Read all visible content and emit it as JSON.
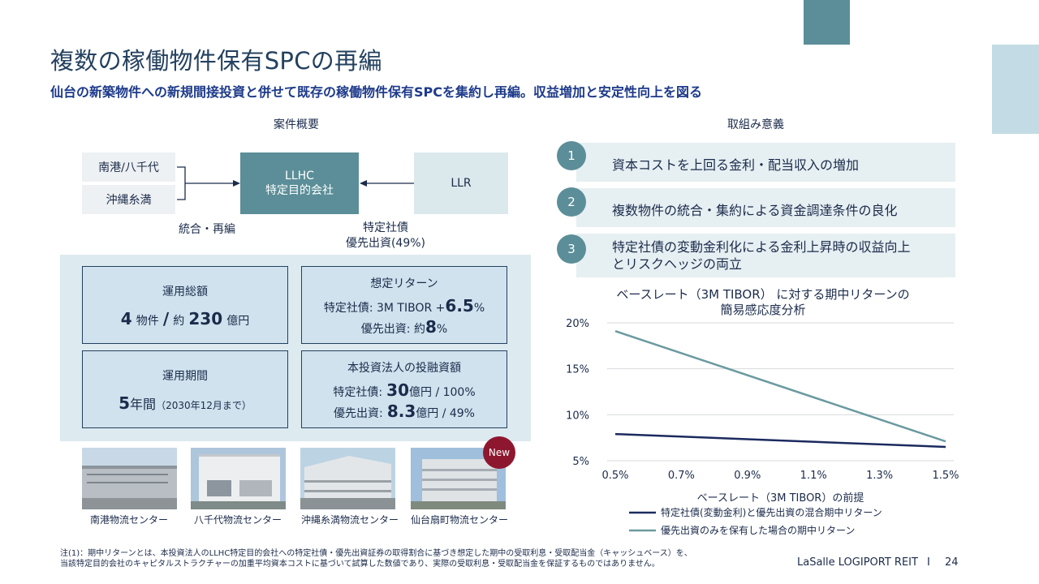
{
  "header": {
    "title": "複数の稼働物件保有SPCの再編",
    "subtitle": "仙台の新築物件への新規間接投資と併せて既存の稼働物件保有SPCを集約し再編。収益増加と安定性向上を図る"
  },
  "overview": {
    "heading": "案件概要",
    "source_boxes": [
      "南港/八千代",
      "沖縄糸満"
    ],
    "center_box": [
      "LLHC",
      "特定目的会社"
    ],
    "right_box": "LLR",
    "label_left": "統合・再編",
    "label_right": [
      "特定社債",
      "優先出資(49%)"
    ]
  },
  "cards": {
    "total": {
      "heading": "運用総額",
      "num1": "4",
      "unit1": "物件",
      "slash": "/",
      "prefix": "約",
      "num2": "230",
      "unit2": "億円"
    },
    "return": {
      "heading": "想定リターン",
      "line1_label": "特定社債: 3M TIBOR +",
      "line1_num": "6.5",
      "line1_unit": "%",
      "line2_label": "優先出資: 約",
      "line2_num": "8",
      "line2_unit": "%"
    },
    "period": {
      "heading": "運用期間",
      "num": "5",
      "unit": "年間",
      "note": "（2030年12月まで）"
    },
    "investment": {
      "heading": "本投資法人の投融資額",
      "line1_label": "特定社債:",
      "line1_num": "30",
      "line1_unit": "億円 / 100%",
      "line2_label": "優先出資:",
      "line2_num": "8.3",
      "line2_unit": "億円 / 49%"
    }
  },
  "photos": [
    {
      "caption": "南港物流センター"
    },
    {
      "caption": "八千代物流センター"
    },
    {
      "caption": "沖縄糸満物流センター"
    },
    {
      "caption": "仙台扇町物流センター"
    }
  ],
  "new_badge": "New",
  "significance": {
    "heading": "取組み意義",
    "items": [
      {
        "num": "1",
        "text": "資本コストを上回る金利・配当収入の増加"
      },
      {
        "num": "2",
        "text": "複数物件の統合・集約による資金調達条件の良化"
      },
      {
        "num": "3",
        "text_line1": "特定社債の変動金利化による金利上昇時の収益向上",
        "text_line2": "とリスクヘッジの両立"
      }
    ]
  },
  "chart_title": [
    "ベースレート（3M TIBOR） に対する期中リターンの",
    "簡易感応度分析"
  ],
  "chart_data": {
    "type": "line",
    "title": "ベースレート（3M TIBOR） に対する期中リターンの 簡易感応度分析",
    "xlabel": "ベースレート（3M TIBOR）の前提",
    "ylabel": "",
    "x_tick_labels": [
      "0.5%",
      "0.7%",
      "0.9%",
      "1.1%",
      "1.3%",
      "1.5%"
    ],
    "y_tick_labels": [
      "5%",
      "10%",
      "15%",
      "20%"
    ],
    "xlim": [
      0.5,
      1.5
    ],
    "ylim": [
      5,
      20
    ],
    "grid": true,
    "legend_position": "bottom",
    "series": [
      {
        "name": "特定社債(変動金利)と優先出資の混合期中リターン",
        "color": "#1b2a5e",
        "x": [
          0.5,
          1.5
        ],
        "y": [
          7.9,
          6.5
        ]
      },
      {
        "name": "優先出資のみを保有した場合の期中リターン",
        "color": "#6a9a9f",
        "x": [
          0.5,
          1.5
        ],
        "y": [
          19.1,
          7.1
        ]
      }
    ]
  },
  "footnote": {
    "line1": "注(1)：期中リターンとは、本投資法人のLLHC特定目的会社への特定社債・優先出資証券の取得割合に基づき想定した期中の受取利息・受取配当金（キャッシュベース）を、",
    "line2": "当該特定目的会社のキャピタルストラクチャーの加重平均資本コストに基づいて試算した数値であり、実際の受取利息・受取配当金を保証するものではありません。"
  },
  "footer": {
    "brand": "LaSalle LOGIPORT REIT",
    "separator": "I",
    "page": "24"
  },
  "colors": {
    "teal": "#5b8e98",
    "navy": "#1b2a5e",
    "accent_blue": "#1d3a8a",
    "badge_red": "#8e1730"
  }
}
